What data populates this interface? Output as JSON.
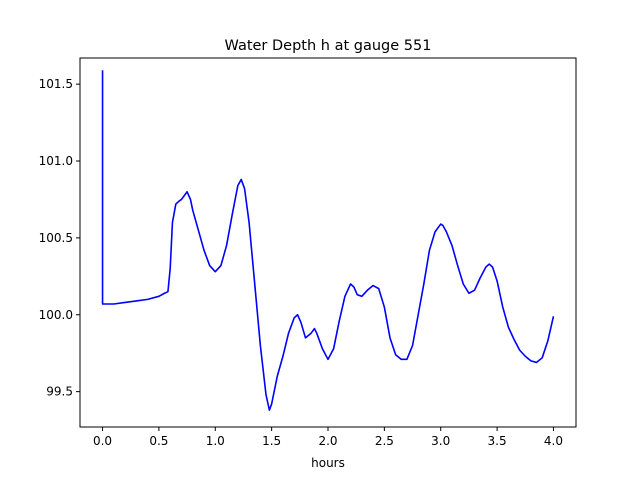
{
  "chart_data": {
    "type": "line",
    "title": "Water Depth h at gauge 551",
    "xlabel": "hours",
    "ylabel": "",
    "xlim": [
      -0.2,
      4.2
    ],
    "ylim": [
      99.27,
      101.67
    ],
    "xticks": [
      {
        "value": 0.0,
        "label": "0.0"
      },
      {
        "value": 0.5,
        "label": "0.5"
      },
      {
        "value": 1.0,
        "label": "1.0"
      },
      {
        "value": 1.5,
        "label": "1.5"
      },
      {
        "value": 2.0,
        "label": "2.0"
      },
      {
        "value": 2.5,
        "label": "2.5"
      },
      {
        "value": 3.0,
        "label": "3.0"
      },
      {
        "value": 3.5,
        "label": "3.5"
      },
      {
        "value": 4.0,
        "label": "4.0"
      }
    ],
    "yticks": [
      {
        "value": 99.5,
        "label": "99.5"
      },
      {
        "value": 100.0,
        "label": "100.0"
      },
      {
        "value": 100.5,
        "label": "100.5"
      },
      {
        "value": 101.0,
        "label": "101.0"
      },
      {
        "value": 101.5,
        "label": "101.5"
      }
    ],
    "grid": false,
    "series": [
      {
        "color": "#0000ff",
        "x": [
          0.0,
          0.0,
          0.0,
          0.1,
          0.2,
          0.3,
          0.4,
          0.5,
          0.55,
          0.58,
          0.6,
          0.62,
          0.65,
          0.68,
          0.7,
          0.73,
          0.75,
          0.78,
          0.8,
          0.85,
          0.9,
          0.95,
          1.0,
          1.05,
          1.1,
          1.15,
          1.2,
          1.23,
          1.26,
          1.3,
          1.35,
          1.4,
          1.45,
          1.48,
          1.5,
          1.55,
          1.6,
          1.65,
          1.7,
          1.73,
          1.76,
          1.8,
          1.85,
          1.88,
          1.9,
          1.95,
          2.0,
          2.05,
          2.1,
          2.15,
          2.2,
          2.23,
          2.26,
          2.3,
          2.35,
          2.4,
          2.45,
          2.5,
          2.55,
          2.6,
          2.65,
          2.7,
          2.75,
          2.8,
          2.85,
          2.9,
          2.95,
          3.0,
          3.02,
          3.05,
          3.1,
          3.15,
          3.2,
          3.25,
          3.3,
          3.35,
          3.4,
          3.43,
          3.46,
          3.5,
          3.55,
          3.6,
          3.65,
          3.7,
          3.75,
          3.8,
          3.85,
          3.9,
          3.95,
          4.0
        ],
        "y": [
          101.59,
          100.5,
          100.07,
          100.07,
          100.08,
          100.09,
          100.1,
          100.12,
          100.14,
          100.15,
          100.3,
          100.6,
          100.72,
          100.74,
          100.75,
          100.78,
          100.8,
          100.75,
          100.68,
          100.55,
          100.42,
          100.32,
          100.28,
          100.32,
          100.45,
          100.65,
          100.84,
          100.88,
          100.82,
          100.6,
          100.2,
          99.8,
          99.48,
          99.38,
          99.42,
          99.6,
          99.73,
          99.88,
          99.98,
          100.0,
          99.95,
          99.85,
          99.88,
          99.91,
          99.88,
          99.78,
          99.71,
          99.78,
          99.96,
          100.12,
          100.2,
          100.18,
          100.13,
          100.12,
          100.16,
          100.19,
          100.17,
          100.05,
          99.85,
          99.74,
          99.71,
          99.71,
          99.8,
          100.0,
          100.2,
          100.42,
          100.54,
          100.59,
          100.58,
          100.54,
          100.45,
          100.32,
          100.2,
          100.14,
          100.16,
          100.24,
          100.31,
          100.33,
          100.31,
          100.22,
          100.05,
          99.92,
          99.84,
          99.77,
          99.73,
          99.7,
          99.69,
          99.72,
          99.83,
          99.99
        ]
      }
    ]
  }
}
